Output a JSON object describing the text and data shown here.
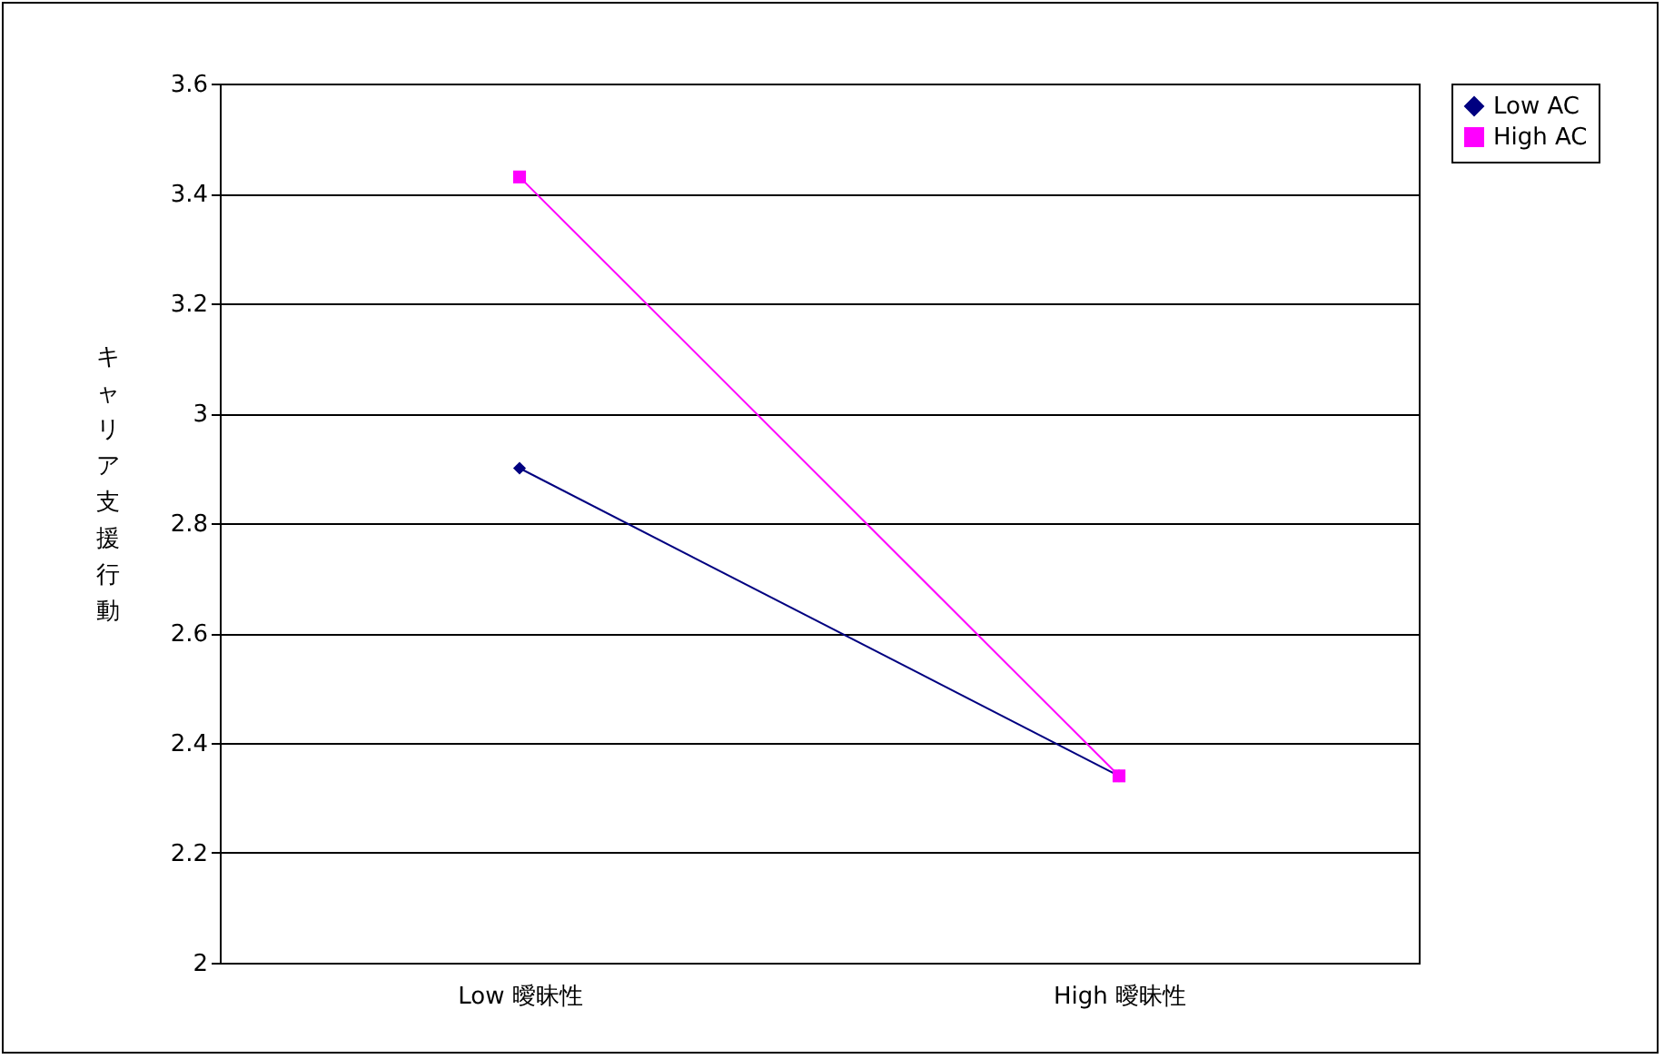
{
  "chart_data": {
    "type": "line",
    "ylabel": "キャリア支援行動",
    "categories": [
      "Low 曖昧性",
      "High 曖昧性"
    ],
    "series": [
      {
        "name": "Low AC",
        "color": "#000080",
        "marker": "diamond",
        "values": [
          2.9,
          2.34
        ]
      },
      {
        "name": "High AC",
        "color": "#ff00ff",
        "marker": "square",
        "values": [
          3.43,
          2.34
        ]
      }
    ],
    "ylim": [
      2,
      3.6
    ],
    "yticks": [
      2,
      2.2,
      2.4,
      2.6,
      2.8,
      3,
      3.2,
      3.4,
      3.6
    ],
    "grid": "y",
    "legend": "right",
    "line_style": "solid"
  }
}
